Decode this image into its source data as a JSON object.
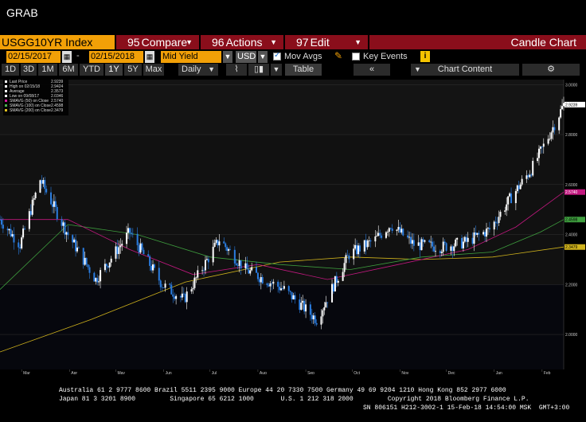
{
  "window": {
    "title": "GRAB"
  },
  "toolbar": {
    "ticker": "USGG10YR Index",
    "compare": {
      "num": "95",
      "label": "Compare"
    },
    "actions": {
      "num": "96",
      "label": "Actions"
    },
    "edit": {
      "num": "97",
      "label": "Edit"
    },
    "chart_type": "Candle Chart"
  },
  "params": {
    "start_date": "02/15/2017",
    "end_date": "02/15/2018",
    "dash": "-",
    "field": "Mid Yield",
    "currency": "USD",
    "mov_avgs_label": "Mov Avgs",
    "mov_avgs_checked": true,
    "key_events_label": "Key Events",
    "key_events_checked": false,
    "info": "i"
  },
  "ranges": {
    "buttons": [
      "1D",
      "3D",
      "1M",
      "6M",
      "YTD",
      "1Y",
      "5Y",
      "Max"
    ],
    "active": "1Y",
    "frequency": "Daily",
    "table_label": "Table",
    "chart_content_label": "Chart Content",
    "back_icon": "double-chevron-left-icon",
    "settings_icon": "gear-icon"
  },
  "chart_data": {
    "type": "candlestick",
    "title": "",
    "xlabel": "",
    "ylabel": "",
    "ylim": [
      1.86,
      3.02
    ],
    "yticks": [
      2.0,
      2.2,
      2.4,
      2.6,
      2.8,
      3.0
    ],
    "ytick_labels": [
      "2.0000",
      "2.2000",
      "2.4000",
      "2.6000",
      "2.8000",
      "3.0000"
    ],
    "month_labels": [
      "Mar",
      "Apr",
      "May",
      "Jun",
      "Jul",
      "Aug",
      "Sep",
      "Oct",
      "Nov",
      "Dec",
      "Jan",
      "Feb"
    ],
    "year_labels": [
      {
        "label": "2017",
        "under": "Jul"
      },
      {
        "label": "2018",
        "under": "Jan"
      }
    ],
    "legend": [
      {
        "label": "Last Price",
        "value": "2.9239",
        "color": "#ffffff"
      },
      {
        "label": "High on 02/15/18",
        "value": "2.9424",
        "color": "#ffffff"
      },
      {
        "label": "Average",
        "value": "2.3573",
        "color": "#ffffff"
      },
      {
        "label": "Low on 09/08/17",
        "value": "2.0346",
        "color": "#ffffff"
      },
      {
        "label": "SMAVG (50) on Close",
        "value": "2.5740",
        "color": "#d0169a"
      },
      {
        "label": "SMAVG (100) on Close",
        "value": "2.4598",
        "color": "#4caf50"
      },
      {
        "label": "SMAVG (200) on Close",
        "value": "2.3479",
        "color": "#e0c020"
      }
    ],
    "last_price_tag": "2.9239",
    "sma50_tag": "2.5740",
    "sma100_tag": "2.4598",
    "sma200_tag": "2.3479",
    "colors": {
      "up": "#ffffff",
      "down": "#2a7de1",
      "sma50": "#c2187f",
      "sma100": "#3e9e3e",
      "sma200": "#cfb21c",
      "background": "#000000",
      "grid": "#333333"
    },
    "series": [
      {
        "name": "Price",
        "dates": [
          "2017-02-15",
          "2017-02-28",
          "2017-03-13",
          "2017-03-31",
          "2017-04-18",
          "2017-05-10",
          "2017-05-31",
          "2017-06-14",
          "2017-07-07",
          "2017-07-24",
          "2017-08-18",
          "2017-09-08",
          "2017-09-29",
          "2017-10-16",
          "2017-10-26",
          "2017-11-10",
          "2017-11-28",
          "2017-12-14",
          "2017-12-29",
          "2018-01-12",
          "2018-01-25",
          "2018-02-05",
          "2018-02-15"
        ],
        "values": [
          2.46,
          2.36,
          2.62,
          2.4,
          2.22,
          2.41,
          2.2,
          2.14,
          2.38,
          2.26,
          2.18,
          2.06,
          2.32,
          2.38,
          2.44,
          2.36,
          2.35,
          2.37,
          2.42,
          2.55,
          2.66,
          2.79,
          2.92
        ]
      }
    ],
    "sma50": {
      "dates": [
        "2017-02-15",
        "2017-03-31",
        "2017-05-10",
        "2017-06-20",
        "2017-08-01",
        "2017-09-15",
        "2017-10-31",
        "2017-12-15",
        "2018-01-15",
        "2018-02-15"
      ],
      "values": [
        2.46,
        2.46,
        2.34,
        2.24,
        2.28,
        2.22,
        2.28,
        2.34,
        2.43,
        2.57
      ]
    },
    "sma100": {
      "dates": [
        "2017-02-15",
        "2017-03-31",
        "2017-05-15",
        "2017-07-01",
        "2017-08-15",
        "2017-09-30",
        "2017-11-15",
        "2017-12-31",
        "2018-01-31",
        "2018-02-15"
      ],
      "values": [
        2.18,
        2.44,
        2.4,
        2.31,
        2.28,
        2.26,
        2.31,
        2.33,
        2.41,
        2.46
      ]
    },
    "sma200": {
      "dates": [
        "2017-02-15",
        "2017-04-15",
        "2017-06-15",
        "2017-08-15",
        "2017-09-30",
        "2017-11-15",
        "2017-12-31",
        "2018-02-15"
      ],
      "values": [
        1.93,
        2.06,
        2.21,
        2.29,
        2.31,
        2.3,
        2.31,
        2.35
      ]
    }
  },
  "footer": {
    "line1": "Australia 61 2 9777 8600 Brazil 5511 2395 9000 Europe 44 20 7330 7500 Germany 49 69 9204 1210 Hong Kong 852 2977 6000",
    "line2": "Japan 81 3 3201 8900         Singapore 65 6212 1000       U.S. 1 212 318 2000         Copyright 2018 Bloomberg Finance L.P.",
    "line3": "SN 806151 H212-3002-1 15-Feb-18 14:54:00 MSK  GMT+3:00"
  }
}
